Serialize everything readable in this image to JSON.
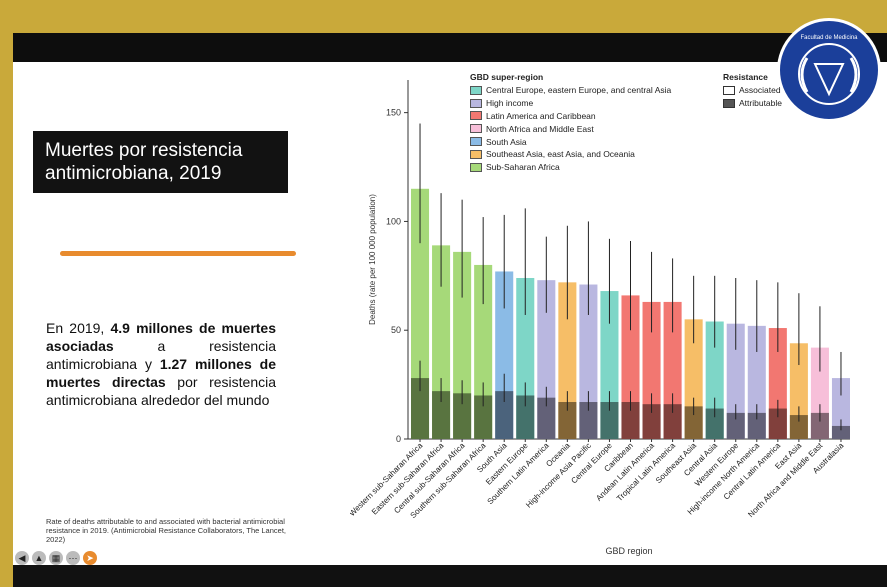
{
  "slide": {
    "title": "Muertes por resistencia\nantimicrobiana, 2019",
    "body": {
      "p1": "En 2019, ",
      "b1": "4.9 millones de muertes asociadas",
      "p2": " a resistencia antimicrobiana y ",
      "b2": "1.27 millones de muertes directas",
      "p3": " por resistencia antimicrobiana alrededor del mundo"
    },
    "caption": "Rate of deaths attributable to and associated with bacterial antimicrobial resistance in 2019. (Antimicrobial Resistance Collaborators, The Lancet, 2022)",
    "logo_text": "Facultad de Medicina"
  },
  "legend": {
    "title": "GBD super-region",
    "items": [
      {
        "label": "Central Europe, eastern Europe, and central Asia",
        "color": "#7ed6c7"
      },
      {
        "label": "High income",
        "color": "#b9b7e0"
      },
      {
        "label": "Latin America and Caribbean",
        "color": "#f27771"
      },
      {
        "label": "North Africa and Middle East",
        "color": "#f7bfd9"
      },
      {
        "label": "South Asia",
        "color": "#8bbbe6"
      },
      {
        "label": "Southeast Asia, east Asia, and Oceania",
        "color": "#f6be67"
      },
      {
        "label": "Sub-Saharan Africa",
        "color": "#a6d979"
      }
    ],
    "resistance_title": "Resistance",
    "resistance_items": [
      {
        "label": "Associated",
        "color": "#ffffff"
      },
      {
        "label": "Attributable",
        "color": "#555555"
      }
    ]
  },
  "chart_data": {
    "type": "bar",
    "xlabel": "GBD region",
    "ylabel": "Deaths (rate per 100 000 population)",
    "ylim": [
      0,
      165
    ],
    "yticks": [
      0,
      50,
      100,
      150
    ],
    "categories": [
      "Western sub-Saharan Africa",
      "Eastern sub-Saharan Africa",
      "Central sub-Saharan Africa",
      "Southern sub-Saharan Africa",
      "South Asia",
      "Eastern Europe",
      "Southern Latin America",
      "Oceania",
      "High-income Asia Pacific",
      "Central Europe",
      "Caribbean",
      "Andean Latin America",
      "Tropical Latin America",
      "Southeast Asia",
      "Central Asia",
      "Western Europe",
      "High-income North America",
      "Central Latin America",
      "East Asia",
      "North Africa and Middle East",
      "Australasia"
    ],
    "super_region": [
      "Sub-Saharan Africa",
      "Sub-Saharan Africa",
      "Sub-Saharan Africa",
      "Sub-Saharan Africa",
      "South Asia",
      "Central Europe, eastern Europe, and central Asia",
      "High income",
      "Southeast Asia, east Asia, and Oceania",
      "High income",
      "Central Europe, eastern Europe, and central Asia",
      "Latin America and Caribbean",
      "Latin America and Caribbean",
      "Latin America and Caribbean",
      "Southeast Asia, east Asia, and Oceania",
      "Central Europe, eastern Europe, and central Asia",
      "High income",
      "High income",
      "Latin America and Caribbean",
      "Southeast Asia, east Asia, and Oceania",
      "North Africa and Middle East",
      "High income"
    ],
    "series": [
      {
        "name": "Associated",
        "values": [
          115,
          89,
          86,
          80,
          77,
          74,
          73,
          72,
          71,
          68,
          66,
          63,
          63,
          55,
          54,
          53,
          52,
          51,
          44,
          42,
          28
        ],
        "err_low": [
          90,
          70,
          65,
          62,
          60,
          57,
          58,
          55,
          57,
          53,
          50,
          49,
          49,
          44,
          42,
          41,
          40,
          40,
          34,
          31,
          20
        ],
        "err_high": [
          145,
          113,
          110,
          102,
          103,
          106,
          93,
          98,
          100,
          92,
          91,
          86,
          83,
          75,
          75,
          74,
          73,
          72,
          67,
          61,
          40
        ]
      },
      {
        "name": "Attributable",
        "values": [
          28,
          22,
          21,
          20,
          22,
          20,
          19,
          17,
          17,
          17,
          17,
          16,
          16,
          15,
          14,
          12,
          12,
          14,
          11,
          12,
          6
        ],
        "err_low": [
          22,
          17,
          16,
          15,
          17,
          15,
          15,
          13,
          13,
          13,
          13,
          12,
          12,
          11,
          10,
          9,
          9,
          10,
          8,
          8,
          4
        ],
        "err_high": [
          36,
          28,
          27,
          26,
          30,
          26,
          24,
          22,
          22,
          22,
          22,
          21,
          21,
          19,
          19,
          16,
          16,
          18,
          15,
          16,
          9
        ]
      }
    ]
  }
}
